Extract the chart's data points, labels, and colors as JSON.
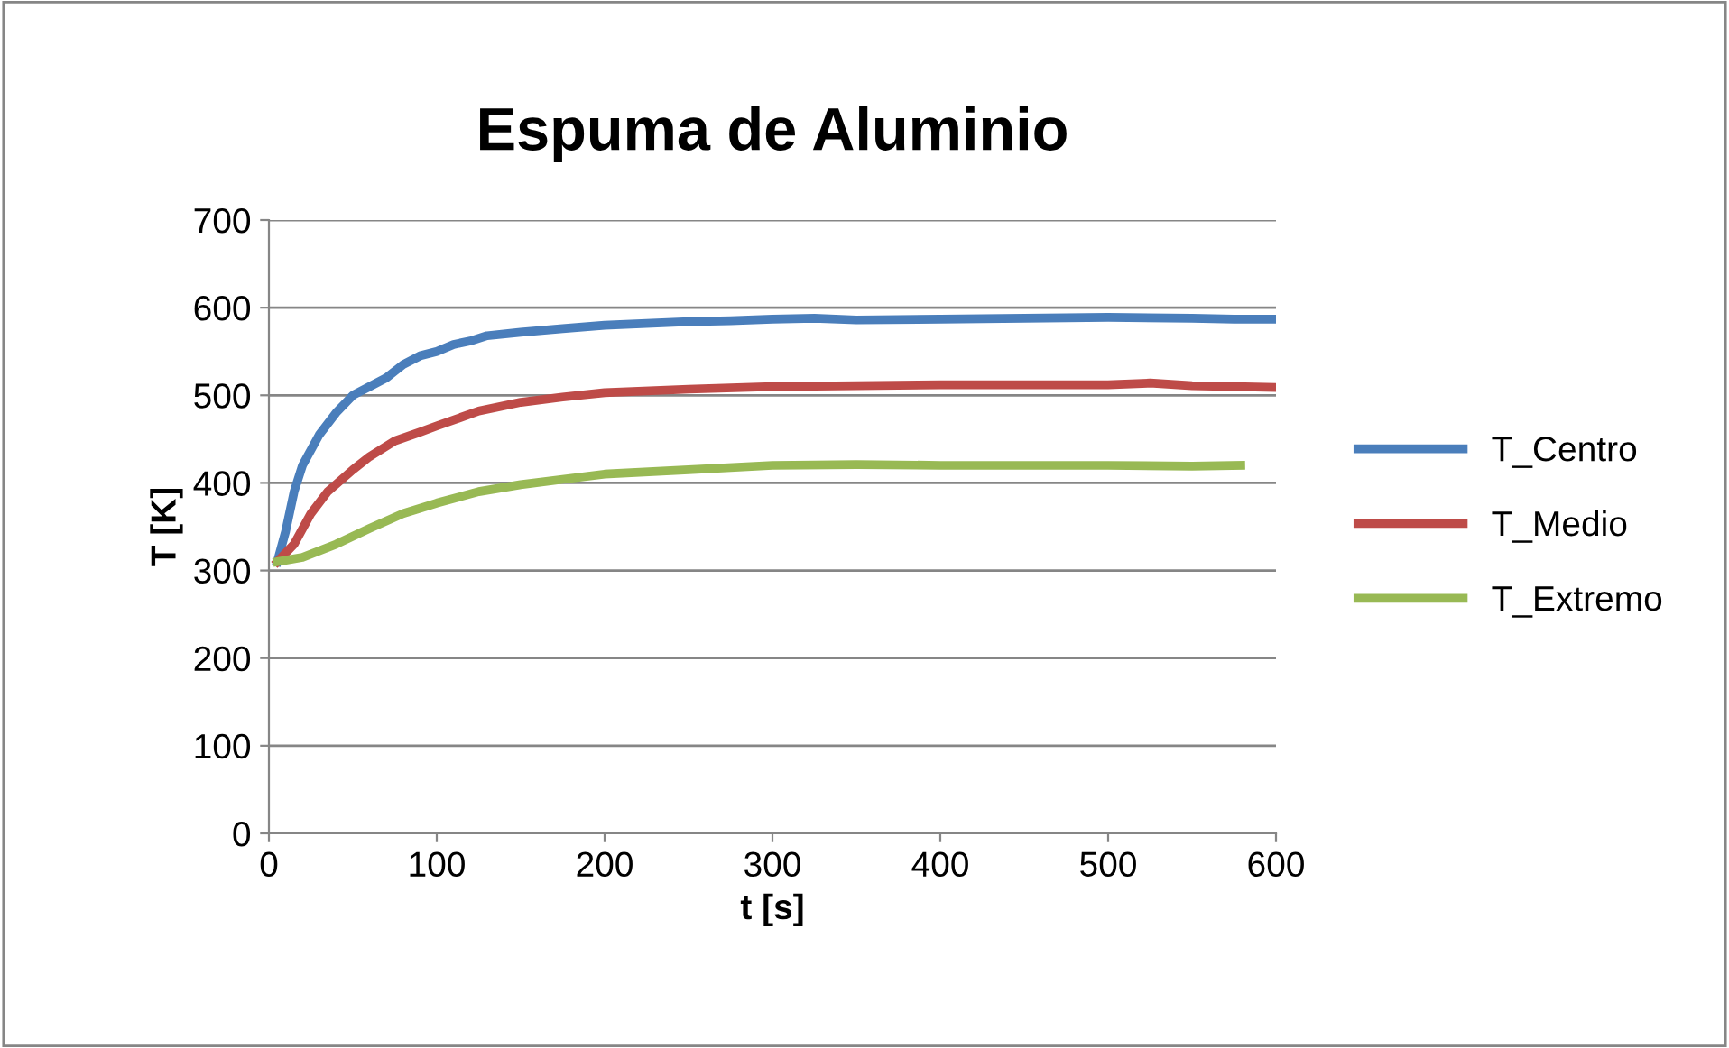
{
  "chart_data": {
    "type": "line",
    "title": "Espuma de Aluminio",
    "xlabel": "t [s]",
    "ylabel": "T [K]",
    "xlim": [
      0,
      600
    ],
    "xticks": [
      0,
      100,
      200,
      300,
      400,
      500,
      600
    ],
    "ylim": [
      0,
      700
    ],
    "yticks": [
      0,
      100,
      200,
      300,
      400,
      500,
      600,
      700
    ],
    "grid": "y",
    "legend": "right",
    "marker": "none",
    "line_style": "solid",
    "series": [
      {
        "name": "T_Centro",
        "color": "#4a7ebb",
        "x": [
          5,
          10,
          15,
          20,
          30,
          40,
          50,
          60,
          70,
          80,
          90,
          100,
          110,
          120,
          130,
          150,
          175,
          200,
          225,
          250,
          275,
          300,
          325,
          350,
          400,
          450,
          500,
          550,
          575,
          600
        ],
        "values": [
          310,
          345,
          390,
          420,
          455,
          480,
          500,
          510,
          520,
          535,
          545,
          550,
          558,
          562,
          568,
          572,
          576,
          580,
          582,
          584,
          585,
          587,
          588,
          586,
          587,
          588,
          589,
          588,
          587,
          587
        ]
      },
      {
        "name": "T_Medio",
        "color": "#be4b48",
        "x": [
          5,
          15,
          25,
          35,
          50,
          60,
          75,
          90,
          100,
          125,
          150,
          175,
          200,
          250,
          300,
          350,
          400,
          450,
          500,
          525,
          550,
          600
        ],
        "values": [
          310,
          330,
          365,
          390,
          415,
          430,
          448,
          458,
          465,
          482,
          492,
          498,
          503,
          507,
          510,
          511,
          512,
          512,
          512,
          514,
          511,
          509
        ]
      },
      {
        "name": "T_Extremo",
        "color": "#98b954",
        "x": [
          5,
          20,
          40,
          60,
          80,
          100,
          125,
          150,
          175,
          200,
          250,
          300,
          350,
          400,
          450,
          500,
          550,
          579
        ],
        "values": [
          310,
          315,
          330,
          348,
          365,
          377,
          390,
          398,
          404,
          410,
          415,
          420,
          421,
          420,
          420,
          420,
          419,
          420
        ]
      }
    ]
  }
}
